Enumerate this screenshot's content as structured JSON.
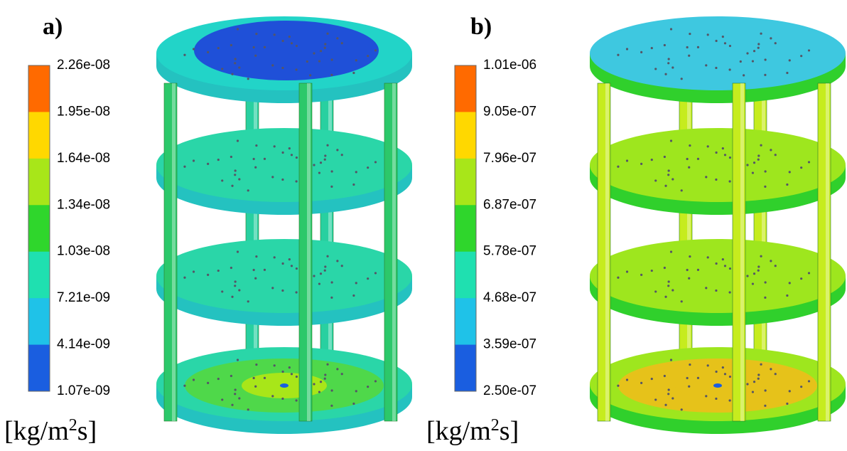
{
  "panels": [
    {
      "label": "a)",
      "colorbar": {
        "ticks": [
          "2.26e-08",
          "1.95e-08",
          "1.64e-08",
          "1.34e-08",
          "1.03e-08",
          "7.21e-09",
          "4.14e-09",
          "1.07e-09"
        ],
        "colors": [
          "#ff6a00",
          "#ffd800",
          "#a8e619",
          "#2fd62c",
          "#1fe0b0",
          "#1fc2e8",
          "#1a5ee0"
        ]
      },
      "unit": {
        "base": "[kg/m",
        "sup": "2",
        "tail": "s]"
      }
    },
    {
      "label": "b)",
      "colorbar": {
        "ticks": [
          "1.01e-06",
          "9.05e-07",
          "7.96e-07",
          "6.87e-07",
          "5.78e-07",
          "4.68e-07",
          "3.59e-07",
          "2.50e-07"
        ],
        "colors": [
          "#ff6a00",
          "#ffd800",
          "#a8e619",
          "#2fd62c",
          "#1fe0b0",
          "#1fc2e8",
          "#1a5ee0"
        ]
      },
      "unit": {
        "base": "[kg/m",
        "sup": "2",
        "tail": "s]"
      }
    }
  ]
}
